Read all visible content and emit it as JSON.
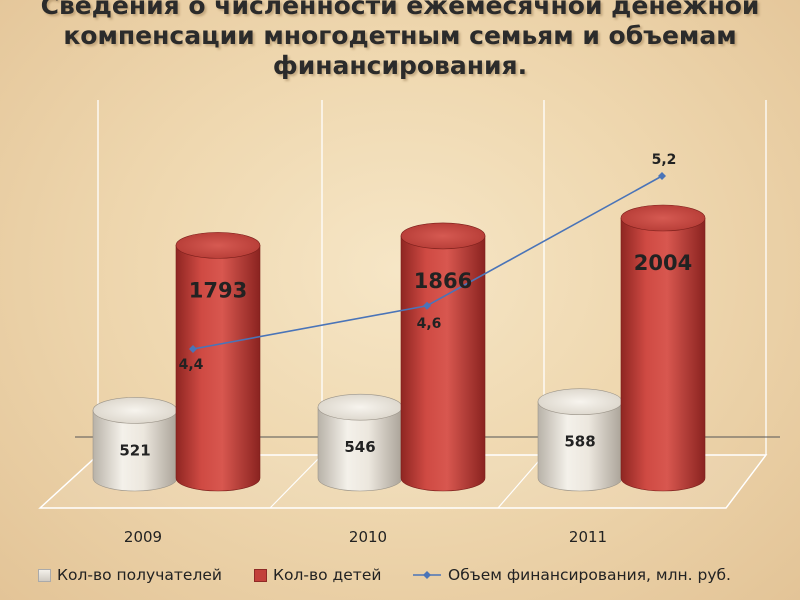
{
  "title": {
    "line1": "Сведения о численности ежемесячной денежной",
    "line2": "компенсации многодетным семьям и объемам",
    "line3": "финансирования."
  },
  "chart_data": {
    "type": "bar",
    "categories": [
      "2009",
      "2010",
      "2011"
    ],
    "series": [
      {
        "name": "Кол-во получателей",
        "values": [
          521,
          546,
          588
        ],
        "value_labels": [
          "521",
          "546",
          "588"
        ],
        "color": "#e9e4da"
      },
      {
        "name": "Кол-во детей",
        "values": [
          1793,
          1866,
          2004
        ],
        "value_labels": [
          "1793",
          "1866",
          "2004"
        ],
        "color": "#c2403a"
      },
      {
        "name": "Объем финансирования, млн. руб.",
        "type": "line",
        "values": [
          4.4,
          4.6,
          5.2
        ],
        "value_labels": [
          "4,4",
          "4,6",
          "5,2"
        ],
        "color": "#4a74b8"
      }
    ],
    "legend_position": "bottom",
    "grid": true
  }
}
